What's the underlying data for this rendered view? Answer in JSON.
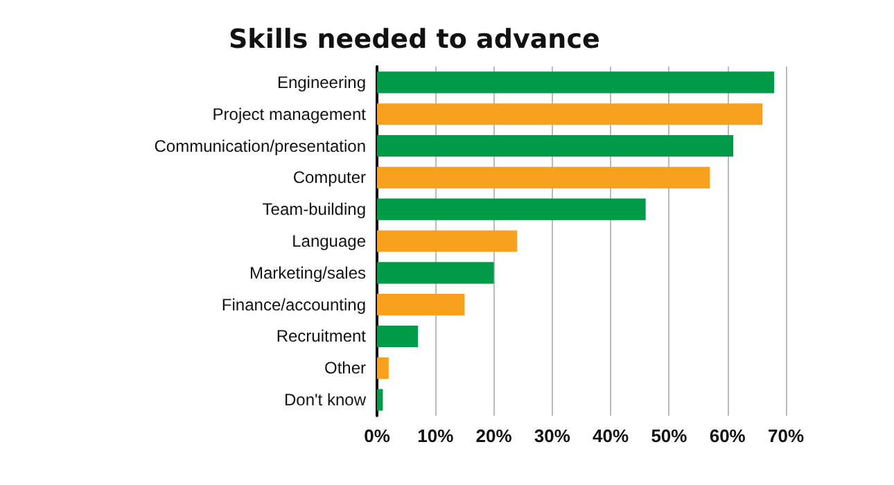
{
  "chart_data": {
    "type": "bar",
    "orientation": "horizontal",
    "title": "Skills needed to advance",
    "categories": [
      "Engineering",
      "Project management",
      "Communication/presentation",
      "Computer",
      "Team-building",
      "Language",
      "Marketing/sales",
      "Finance/accounting",
      "Recruitment",
      "Other",
      "Don't know"
    ],
    "values": [
      68,
      66,
      61,
      57,
      46,
      24,
      20,
      15,
      7,
      2,
      1
    ],
    "colors": [
      "#009a48",
      "#f7a11f",
      "#009a48",
      "#f7a11f",
      "#009a48",
      "#f7a11f",
      "#009a48",
      "#f7a11f",
      "#009a48",
      "#f7a11f",
      "#009a48"
    ],
    "xlim": [
      0,
      70
    ],
    "xticks": [
      {
        "value": 0,
        "label": "0%"
      },
      {
        "value": 10,
        "label": "10%"
      },
      {
        "value": 20,
        "label": "20%"
      },
      {
        "value": 30,
        "label": "30%"
      },
      {
        "value": 40,
        "label": "40%"
      },
      {
        "value": 50,
        "label": "50%"
      },
      {
        "value": 60,
        "label": "60%"
      },
      {
        "value": 70,
        "label": "70%"
      }
    ],
    "grid": "x"
  }
}
